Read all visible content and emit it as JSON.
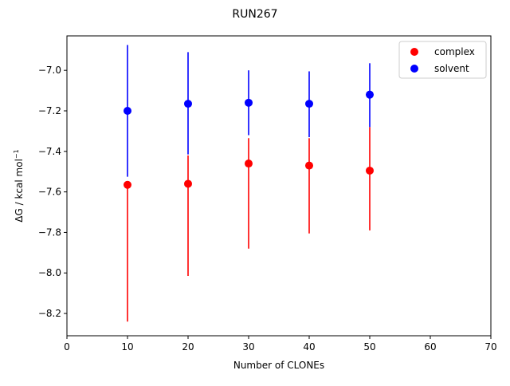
{
  "chart_data": {
    "type": "scatter",
    "title": "RUN267",
    "xlabel": "Number of CLONEs",
    "ylabel_main": "ΔG / kcal mol",
    "ylabel_sup": "−1",
    "xlim": [
      0,
      70
    ],
    "ylim": [
      -8.31,
      -6.83
    ],
    "xticks": [
      0,
      10,
      20,
      30,
      40,
      50,
      60,
      70
    ],
    "xtick_labels": [
      "0",
      "10",
      "20",
      "30",
      "40",
      "50",
      "60",
      "70"
    ],
    "yticks": [
      -8.2,
      -8.0,
      -7.8,
      -7.6,
      -7.4,
      -7.2,
      -7.0
    ],
    "ytick_labels": [
      "−8.2",
      "−8.0",
      "−7.8",
      "−7.6",
      "−7.4",
      "−7.2",
      "−7.0"
    ],
    "grid": false,
    "legend_position": "top-right",
    "series": [
      {
        "name": "complex",
        "color": "#ff0000",
        "x": [
          10,
          20,
          30,
          40,
          50
        ],
        "y": [
          -7.565,
          -7.56,
          -7.46,
          -7.47,
          -7.495
        ],
        "yerr_low": [
          -8.24,
          -8.015,
          -7.88,
          -7.805,
          -7.79
        ],
        "yerr_high": [
          -7.565,
          -7.42,
          -7.335,
          -7.335,
          -7.28
        ]
      },
      {
        "name": "solvent",
        "color": "#0000ff",
        "x": [
          10,
          20,
          30,
          40,
          50
        ],
        "y": [
          -7.2,
          -7.165,
          -7.16,
          -7.165,
          -7.12
        ],
        "yerr_low": [
          -7.525,
          -7.415,
          -7.32,
          -7.33,
          -7.28
        ],
        "yerr_high": [
          -6.875,
          -6.91,
          -7.0,
          -7.005,
          -6.965
        ]
      }
    ]
  }
}
